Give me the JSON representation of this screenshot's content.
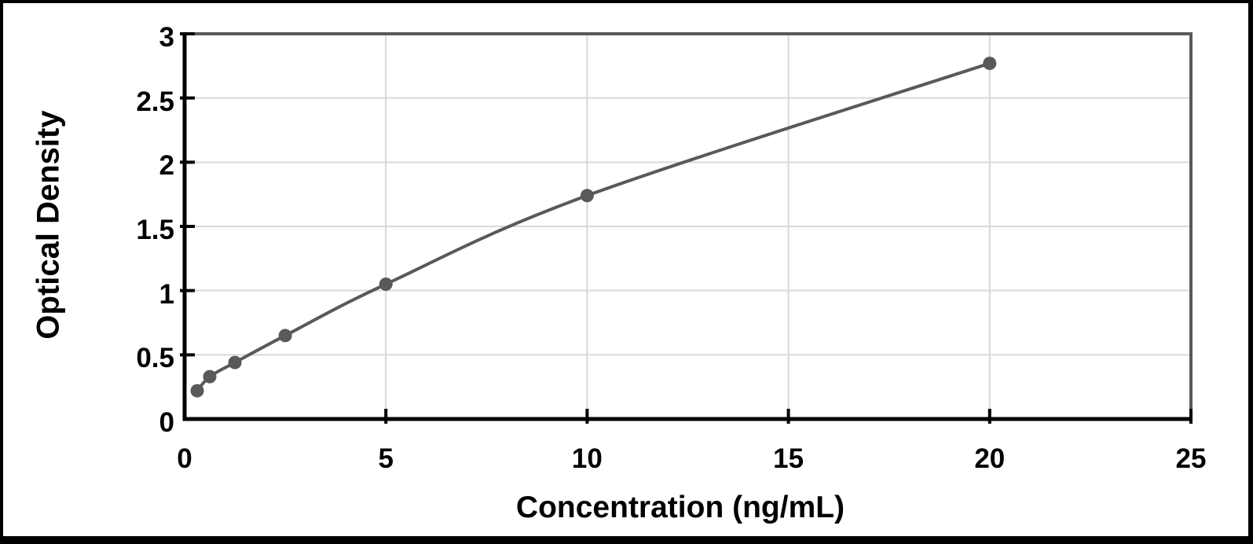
{
  "chart_data": {
    "type": "scatter",
    "subtype": "smooth-line-with-markers",
    "title": "",
    "xlabel": "Concentration (ng/mL)",
    "ylabel": "Optical Density",
    "x": [
      0.313,
      0.625,
      1.25,
      2.5,
      5,
      10,
      20
    ],
    "y": [
      0.22,
      0.33,
      0.44,
      0.65,
      1.05,
      1.74,
      2.77
    ],
    "xlim": [
      0,
      25
    ],
    "ylim": [
      0,
      3
    ],
    "x_ticks": [
      0,
      5,
      10,
      15,
      20,
      25
    ],
    "x_tick_labels": [
      "0",
      "5",
      "10",
      "15",
      "20",
      "25"
    ],
    "y_ticks": [
      0,
      0.5,
      1,
      1.5,
      2,
      2.5,
      3
    ],
    "y_tick_labels": [
      "0",
      "0.5",
      "1",
      "1.5",
      "2",
      "2.5",
      "3"
    ],
    "grid": true,
    "legend": "none",
    "colors": {
      "series": "#595959",
      "marker": "#595959",
      "gridline": "#d9d9d9",
      "axis": "#000000",
      "plot_frame": "#595959",
      "background": "#ffffff",
      "figure_border": "#000000"
    },
    "marker_diameter_px": 17
  }
}
